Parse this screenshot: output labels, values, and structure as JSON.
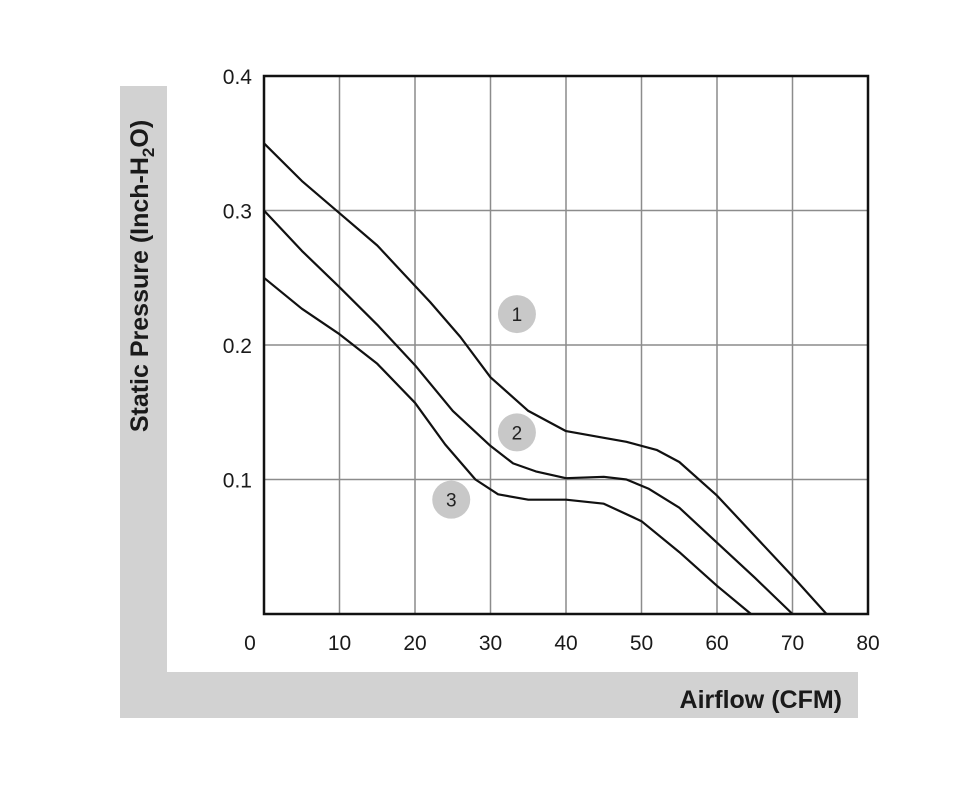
{
  "chart_data": {
    "type": "line",
    "xlabel": "Airflow (CFM)",
    "ylabel_parts": [
      "Static Pressure (Inch-H",
      "2",
      "O)"
    ],
    "xlim": [
      0,
      80
    ],
    "ylim": [
      0,
      0.4
    ],
    "x_ticks": [
      0,
      10,
      20,
      30,
      40,
      50,
      60,
      70,
      80
    ],
    "x_tick_labels": [
      "0",
      "10",
      "20",
      "30",
      "40",
      "50",
      "60",
      "70",
      "80"
    ],
    "y_ticks": [
      0.1,
      0.2,
      0.3,
      0.4
    ],
    "y_tick_labels": [
      "0.1",
      "0.2",
      "0.3",
      "0.4"
    ],
    "grid": true,
    "series": [
      {
        "name": "1",
        "marker_at": [
          33.5,
          0.223
        ],
        "points": [
          [
            0,
            0.35
          ],
          [
            5,
            0.322
          ],
          [
            10,
            0.298
          ],
          [
            15,
            0.274
          ],
          [
            18,
            0.256
          ],
          [
            22,
            0.232
          ],
          [
            26,
            0.206
          ],
          [
            30,
            0.176
          ],
          [
            35,
            0.151
          ],
          [
            40,
            0.136
          ],
          [
            45,
            0.131
          ],
          [
            48,
            0.128
          ],
          [
            52,
            0.122
          ],
          [
            55,
            0.113
          ],
          [
            60,
            0.088
          ],
          [
            65,
            0.058
          ],
          [
            70,
            0.028
          ],
          [
            74.5,
            0.0
          ]
        ]
      },
      {
        "name": "2",
        "marker_at": [
          33.5,
          0.135
        ],
        "points": [
          [
            0,
            0.3
          ],
          [
            5,
            0.27
          ],
          [
            10,
            0.243
          ],
          [
            15,
            0.215
          ],
          [
            20,
            0.185
          ],
          [
            25,
            0.151
          ],
          [
            30,
            0.125
          ],
          [
            33,
            0.112
          ],
          [
            36,
            0.106
          ],
          [
            40,
            0.101
          ],
          [
            45,
            0.102
          ],
          [
            48,
            0.1
          ],
          [
            51,
            0.093
          ],
          [
            55,
            0.079
          ],
          [
            60,
            0.053
          ],
          [
            65,
            0.027
          ],
          [
            70,
            0.0
          ]
        ]
      },
      {
        "name": "3",
        "marker_at": [
          24.8,
          0.085
        ],
        "points": [
          [
            0,
            0.25
          ],
          [
            5,
            0.227
          ],
          [
            10,
            0.208
          ],
          [
            15,
            0.186
          ],
          [
            20,
            0.157
          ],
          [
            24,
            0.126
          ],
          [
            28,
            0.1
          ],
          [
            31,
            0.089
          ],
          [
            35,
            0.085
          ],
          [
            40,
            0.085
          ],
          [
            45,
            0.082
          ],
          [
            50,
            0.069
          ],
          [
            55,
            0.046
          ],
          [
            60,
            0.021
          ],
          [
            64.5,
            0.0
          ]
        ]
      }
    ],
    "colors": {
      "line": "#111111",
      "grid": "#8c8c8c",
      "frame": "#111111",
      "band": "#d2d2d2",
      "marker": "#c8c8c8"
    }
  }
}
